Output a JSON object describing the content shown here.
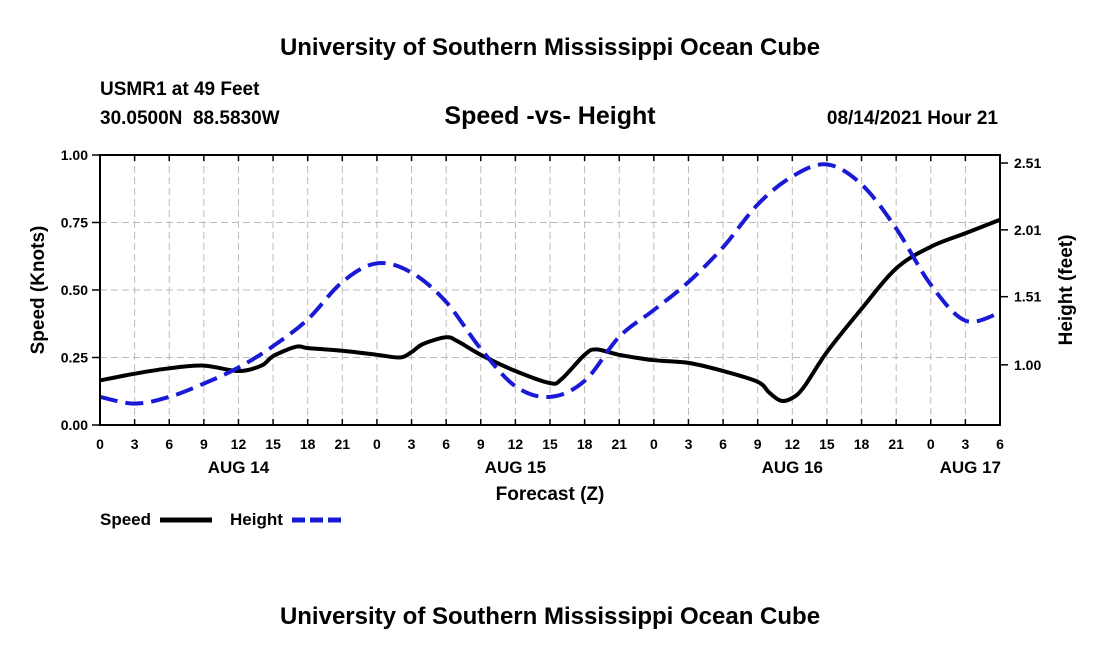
{
  "header": {
    "title": "University of Southern Mississippi Ocean Cube",
    "station": "USMR1 at 49 Feet",
    "coords": "30.0500N  88.5830W",
    "plot_title": "Speed -vs- Height",
    "datetime": "08/14/2021 Hour 21"
  },
  "footer": {
    "title": "University of Southern Mississippi Ocean Cube"
  },
  "colors": {
    "speed": "#000000",
    "height": "#1a1ad6",
    "grid": "#bbbbbb"
  },
  "chart_data": {
    "type": "line",
    "title": "Speed -vs- Height",
    "xlabel": "Forecast (Z)",
    "ylabel": "Speed (Knots)",
    "y2label": "Height (feet)",
    "x_unit": "hours from AUG 14 00Z",
    "xlim": [
      0,
      78
    ],
    "ylim": [
      0,
      1
    ],
    "y2lim": [
      0.55,
      2.57
    ],
    "x_ticks": [
      0,
      3,
      6,
      9,
      12,
      15,
      18,
      21,
      24,
      27,
      30,
      33,
      36,
      39,
      42,
      45,
      48,
      51,
      54,
      57,
      60,
      63,
      66,
      69,
      72,
      75,
      78
    ],
    "x_tick_labels": [
      "0",
      "3",
      "6",
      "9",
      "12",
      "15",
      "18",
      "21",
      "0",
      "3",
      "6",
      "9",
      "12",
      "15",
      "18",
      "21",
      "0",
      "3",
      "6",
      "9",
      "12",
      "15",
      "18",
      "21",
      "0",
      "3",
      "6"
    ],
    "y_ticks": [
      0,
      0.25,
      0.5,
      0.75,
      1.0
    ],
    "y_tick_labels": [
      "0.00",
      "0.25",
      "0.50",
      "0.75",
      "1.00"
    ],
    "y2_ticks": [
      1.0,
      1.51,
      2.01,
      2.51
    ],
    "y2_tick_labels": [
      "1.00",
      "1.51",
      "2.01",
      "2.51"
    ],
    "day_labels": [
      {
        "x": 12,
        "label": "AUG 14"
      },
      {
        "x": 36,
        "label": "AUG 15"
      },
      {
        "x": 60,
        "label": "AUG 16"
      },
      {
        "x": 78,
        "label": "AUG 17"
      }
    ],
    "grid": true,
    "legend": {
      "position": "bottom-left",
      "entries": [
        "Speed",
        "Height"
      ]
    },
    "series": [
      {
        "name": "Speed",
        "axis": "left",
        "style": "solid",
        "x": [
          0,
          3,
          6,
          9,
          12,
          14,
          15,
          17,
          18,
          21,
          24,
          26,
          27,
          28,
          30,
          31,
          33,
          36,
          39,
          40,
          42,
          43,
          45,
          48,
          51,
          54,
          57,
          58,
          59,
          60,
          61,
          63,
          66,
          69,
          72,
          75,
          78
        ],
        "values": [
          0.165,
          0.19,
          0.21,
          0.22,
          0.2,
          0.22,
          0.255,
          0.29,
          0.285,
          0.275,
          0.26,
          0.25,
          0.27,
          0.3,
          0.325,
          0.31,
          0.26,
          0.2,
          0.155,
          0.17,
          0.26,
          0.28,
          0.26,
          0.24,
          0.23,
          0.2,
          0.16,
          0.12,
          0.09,
          0.1,
          0.14,
          0.27,
          0.43,
          0.58,
          0.66,
          0.71,
          0.76
        ]
      },
      {
        "name": "Height",
        "axis": "right",
        "style": "dashed",
        "x": [
          0,
          3,
          6,
          9,
          12,
          15,
          18,
          21,
          24,
          27,
          30,
          33,
          36,
          39,
          42,
          45,
          48,
          51,
          54,
          57,
          60,
          63,
          66,
          69,
          72,
          75,
          78
        ],
        "values": [
          0.76,
          0.71,
          0.76,
          0.86,
          0.98,
          1.14,
          1.34,
          1.62,
          1.76,
          1.69,
          1.47,
          1.12,
          0.84,
          0.76,
          0.88,
          1.21,
          1.41,
          1.62,
          1.88,
          2.2,
          2.41,
          2.5,
          2.35,
          2.02,
          1.6,
          1.33,
          1.39
        ]
      }
    ]
  }
}
